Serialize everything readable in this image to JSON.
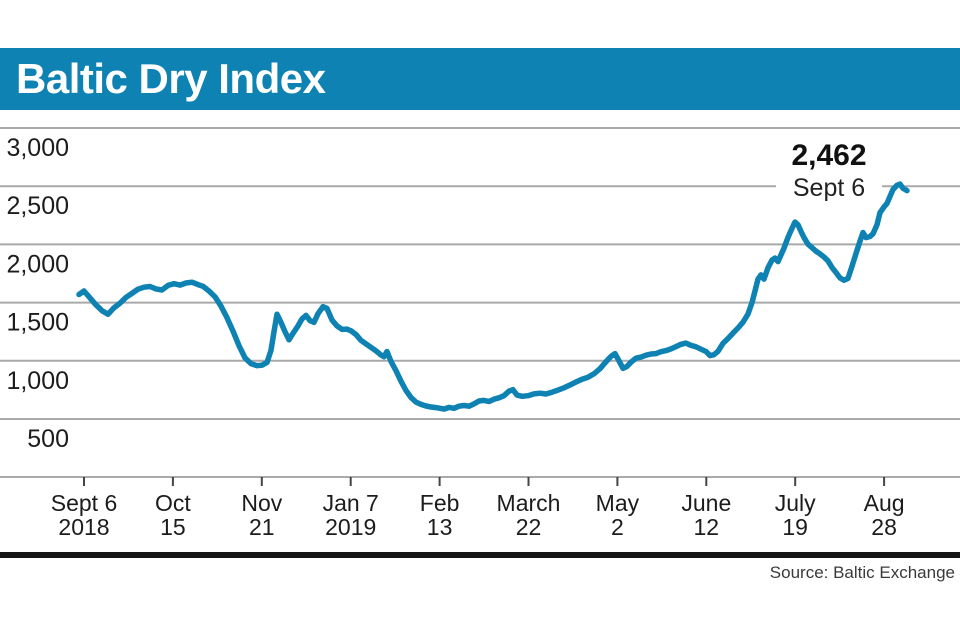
{
  "header": {
    "title": "Baltic Dry Index",
    "bg_color": "#0d82b3",
    "text_color": "#ffffff"
  },
  "annotation": {
    "value": "2,462",
    "date": "Sept 6"
  },
  "source": {
    "label": "Source: Baltic Exchange"
  },
  "colors": {
    "line": "#0d82b3",
    "grid": "#a9a9a9",
    "baseline": "#a9a9a9",
    "tick": "#444444",
    "axis_text": "#1c1c1c",
    "rule": "#151515"
  },
  "chart_data": {
    "type": "line",
    "title": "Baltic Dry Index",
    "ylabel": "",
    "xlabel": "",
    "ylim": [
      500,
      3000
    ],
    "grid": "horizontal-only",
    "legend": "none",
    "y_ticks": [
      3000,
      2500,
      2000,
      1500,
      1000,
      500
    ],
    "y_tick_labels": [
      "3,000",
      "2,500",
      "2,000",
      "1,500",
      "1,000",
      "500"
    ],
    "x_ticks": [
      {
        "line1": "Sept 6",
        "line2": "2018"
      },
      {
        "line1": "Oct",
        "line2": "15"
      },
      {
        "line1": "Nov",
        "line2": "21"
      },
      {
        "line1": "Jan 7",
        "line2": "2019"
      },
      {
        "line1": "Feb",
        "line2": "13"
      },
      {
        "line1": "March",
        "line2": "22"
      },
      {
        "line1": "May",
        "line2": "2"
      },
      {
        "line1": "June",
        "line2": "12"
      },
      {
        "line1": "July",
        "line2": "19"
      },
      {
        "line1": "Aug",
        "line2": "28"
      }
    ],
    "annotation": {
      "value_num": 2462,
      "value": "2,462",
      "date": "Sept 6"
    },
    "source": "Source: Baltic Exchange",
    "series": [
      {
        "name": "Baltic Dry Index",
        "color": "#0d82b3",
        "points": [
          [
            79,
            1570
          ],
          [
            84,
            1600
          ],
          [
            90,
            1540
          ],
          [
            96,
            1480
          ],
          [
            102,
            1430
          ],
          [
            108,
            1400
          ],
          [
            114,
            1455
          ],
          [
            120,
            1495
          ],
          [
            126,
            1545
          ],
          [
            132,
            1580
          ],
          [
            138,
            1615
          ],
          [
            144,
            1632
          ],
          [
            150,
            1638
          ],
          [
            156,
            1618
          ],
          [
            162,
            1608
          ],
          [
            168,
            1648
          ],
          [
            174,
            1662
          ],
          [
            180,
            1650
          ],
          [
            186,
            1668
          ],
          [
            192,
            1675
          ],
          [
            198,
            1655
          ],
          [
            203,
            1640
          ],
          [
            209,
            1600
          ],
          [
            215,
            1550
          ],
          [
            221,
            1470
          ],
          [
            227,
            1370
          ],
          [
            233,
            1255
          ],
          [
            239,
            1130
          ],
          [
            245,
            1025
          ],
          [
            251,
            975
          ],
          [
            257,
            958
          ],
          [
            262,
            962
          ],
          [
            267,
            985
          ],
          [
            271,
            1090
          ],
          [
            274,
            1250
          ],
          [
            277,
            1400
          ],
          [
            281,
            1330
          ],
          [
            285,
            1250
          ],
          [
            289,
            1180
          ],
          [
            293,
            1235
          ],
          [
            298,
            1300
          ],
          [
            302,
            1360
          ],
          [
            306,
            1390
          ],
          [
            310,
            1345
          ],
          [
            314,
            1330
          ],
          [
            318,
            1405
          ],
          [
            323,
            1465
          ],
          [
            327,
            1450
          ],
          [
            332,
            1350
          ],
          [
            337,
            1300
          ],
          [
            342,
            1270
          ],
          [
            347,
            1272
          ],
          [
            351,
            1258
          ],
          [
            356,
            1225
          ],
          [
            361,
            1175
          ],
          [
            366,
            1145
          ],
          [
            371,
            1115
          ],
          [
            376,
            1085
          ],
          [
            381,
            1050
          ],
          [
            384,
            1035
          ],
          [
            387,
            1080
          ],
          [
            391,
            995
          ],
          [
            396,
            915
          ],
          [
            401,
            825
          ],
          [
            406,
            745
          ],
          [
            411,
            685
          ],
          [
            416,
            645
          ],
          [
            421,
            625
          ],
          [
            426,
            612
          ],
          [
            431,
            603
          ],
          [
            436,
            598
          ],
          [
            440,
            592
          ],
          [
            444,
            585
          ],
          [
            449,
            600
          ],
          [
            454,
            592
          ],
          [
            459,
            610
          ],
          [
            464,
            616
          ],
          [
            469,
            610
          ],
          [
            474,
            630
          ],
          [
            479,
            655
          ],
          [
            484,
            660
          ],
          [
            489,
            650
          ],
          [
            494,
            670
          ],
          [
            499,
            682
          ],
          [
            504,
            700
          ],
          [
            509,
            740
          ],
          [
            513,
            752
          ],
          [
            517,
            705
          ],
          [
            522,
            695
          ],
          [
            528,
            700
          ],
          [
            534,
            716
          ],
          [
            540,
            722
          ],
          [
            546,
            715
          ],
          [
            552,
            730
          ],
          [
            558,
            748
          ],
          [
            564,
            768
          ],
          [
            570,
            792
          ],
          [
            576,
            818
          ],
          [
            582,
            842
          ],
          [
            588,
            858
          ],
          [
            594,
            888
          ],
          [
            600,
            932
          ],
          [
            606,
            992
          ],
          [
            611,
            1038
          ],
          [
            615,
            1062
          ],
          [
            619,
            1000
          ],
          [
            623,
            935
          ],
          [
            627,
            952
          ],
          [
            631,
            988
          ],
          [
            636,
            1022
          ],
          [
            641,
            1032
          ],
          [
            646,
            1048
          ],
          [
            651,
            1058
          ],
          [
            656,
            1062
          ],
          [
            661,
            1078
          ],
          [
            666,
            1088
          ],
          [
            671,
            1102
          ],
          [
            676,
            1122
          ],
          [
            681,
            1142
          ],
          [
            686,
            1152
          ],
          [
            691,
            1132
          ],
          [
            696,
            1120
          ],
          [
            701,
            1100
          ],
          [
            706,
            1080
          ],
          [
            710,
            1045
          ],
          [
            714,
            1052
          ],
          [
            718,
            1082
          ],
          [
            723,
            1150
          ],
          [
            728,
            1192
          ],
          [
            733,
            1238
          ],
          [
            738,
            1282
          ],
          [
            743,
            1332
          ],
          [
            748,
            1402
          ],
          [
            752,
            1500
          ],
          [
            755,
            1600
          ],
          [
            758,
            1702
          ],
          [
            761,
            1738
          ],
          [
            764,
            1702
          ],
          [
            768,
            1800
          ],
          [
            772,
            1865
          ],
          [
            775,
            1882
          ],
          [
            778,
            1852
          ],
          [
            781,
            1910
          ],
          [
            784,
            1968
          ],
          [
            788,
            2060
          ],
          [
            792,
            2138
          ],
          [
            795,
            2192
          ],
          [
            798,
            2168
          ],
          [
            801,
            2112
          ],
          [
            804,
            2058
          ],
          [
            808,
            2002
          ],
          [
            812,
            1972
          ],
          [
            816,
            1942
          ],
          [
            820,
            1918
          ],
          [
            824,
            1892
          ],
          [
            828,
            1858
          ],
          [
            832,
            1802
          ],
          [
            836,
            1758
          ],
          [
            840,
            1712
          ],
          [
            844,
            1692
          ],
          [
            848,
            1708
          ],
          [
            852,
            1812
          ],
          [
            856,
            1922
          ],
          [
            860,
            2028
          ],
          [
            863,
            2102
          ],
          [
            866,
            2058
          ],
          [
            870,
            2068
          ],
          [
            873,
            2092
          ],
          [
            877,
            2168
          ],
          [
            880,
            2272
          ],
          [
            884,
            2322
          ],
          [
            887,
            2352
          ],
          [
            890,
            2412
          ],
          [
            893,
            2472
          ],
          [
            897,
            2508
          ],
          [
            900,
            2518
          ],
          [
            903,
            2482
          ],
          [
            907,
            2462
          ]
        ]
      }
    ]
  }
}
